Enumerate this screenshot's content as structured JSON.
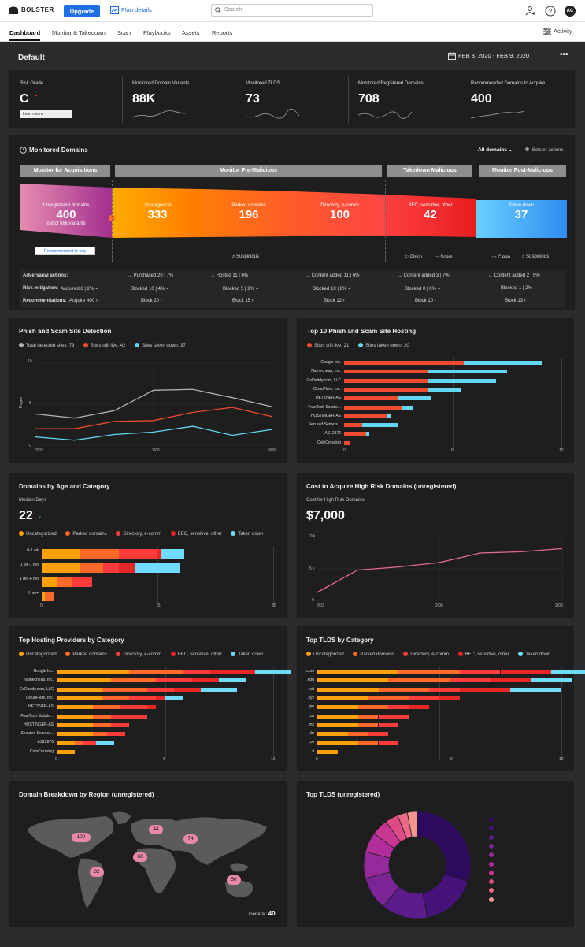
{
  "app": {
    "name": "BOLSTER",
    "upgrade": "Upgrade",
    "plan_details": "Plan details",
    "search_placeholder": "Search",
    "avatar": "AC",
    "activity": "Activity"
  },
  "nav": [
    "Dashboard",
    "Monitor & Takedown",
    "Scan",
    "Playbooks",
    "Assets",
    "Reports"
  ],
  "page": {
    "title": "Default",
    "date_range": "FEB 3, 2020 - FEB 9, 2020"
  },
  "stats": {
    "risk_grade_label": "Risk Grade",
    "risk_grade": "C",
    "learn_more": "Learn more",
    "items": [
      {
        "label": "Monitored Domain Variants",
        "value": "88K"
      },
      {
        "label": "Monitored TLDS",
        "value": "73"
      },
      {
        "label": "Monitored Registered Domains",
        "value": "708"
      },
      {
        "label": "Recommended Domains to Acquire",
        "value": "400"
      }
    ]
  },
  "monitored": {
    "title": "Monitored Domains",
    "filter": "All domains",
    "bolster_actions": "Bolster actions",
    "headers": [
      "Monitor for Acquisitions",
      "Monitor Pre-Malicious",
      "Takedown Malicious",
      "Monitor Post-Malicious"
    ],
    "segments": [
      {
        "label": "Unregistered domains",
        "value": "400",
        "sub": "out of 88k variants"
      },
      {
        "label": "Uncategorized",
        "value": "333"
      },
      {
        "label": "Parked domains",
        "value": "196"
      },
      {
        "label": "Directory, e-comm",
        "value": "100"
      },
      {
        "label": "BEC, sensitive, other",
        "value": "42"
      },
      {
        "label": "Taken down",
        "value": "37"
      }
    ],
    "recommended_btn": "Recommended to buy",
    "tags": {
      "suspicious": "Suspicious",
      "phish": "Phish",
      "scam": "Scam",
      "clean": "Clean",
      "suspicious2": "Suspicious"
    },
    "rows": {
      "adversarial": "Adversarial actions:",
      "risk": "Risk mitigation:",
      "recs": "Recommendations:",
      "adv": [
        "→ Purchased 20 | 7%",
        "→ Hosted 11 | 6%",
        "→ Content added 11 | 6%",
        "→ Content added 3 | 7%",
        "← Content added 2 | 5%"
      ],
      "risk_vals": [
        "Acquired 8 | 2% ⌁",
        "Blocked 10 | 4% ⌁",
        "Blocked 5 | 2% ⌁",
        "Blocked 10 | 8% ⌁",
        "Blocked 0 | 0% ⌁",
        "Blocked 1 | 2%"
      ],
      "rec_vals": [
        "Acquire 400 ›",
        "Block 20 ›",
        "Block 15 ›",
        "Block 12 ›",
        "Block 10 ›",
        "Block 13 ›"
      ]
    }
  },
  "phish_chart": {
    "title": "Phish and Scam Site Detection",
    "legend": [
      "Total detected sites: 79",
      "Sites still live: 42",
      "Sites taken down: 37"
    ],
    "ylabel": "Pages",
    "yticks": [
      "10",
      "5",
      "0"
    ],
    "xticks": [
      "2/03",
      "2/06",
      "2/09"
    ]
  },
  "hosting_chart": {
    "title": "Top 10 Phish and Scam Site Hosting",
    "legend": [
      "Sites still live: 21",
      "Sites taken down: 20"
    ],
    "xticks": [
      "0",
      "6",
      "12"
    ]
  },
  "age_chart": {
    "title": "Domains by Age and Category",
    "sub": "Median Days",
    "value": "22",
    "legend": [
      "Uncategorized",
      "Parked domains",
      "Directory, e-comm",
      "BEC, sensitive, other",
      "Taken down"
    ],
    "xticks": [
      "0",
      "15",
      "30"
    ]
  },
  "cost_chart": {
    "title": "Cost to Acquire High Risk Domains (unregistered)",
    "sub": "Cost for High Risk Domains",
    "value": "$7,000",
    "yticks": [
      "10 k",
      "5 k",
      "0"
    ],
    "xticks": [
      "2/03",
      "2/06",
      "2/09"
    ]
  },
  "providers_chart": {
    "title": "Top Hosting Providers by Category",
    "legend": [
      "Uncategorized",
      "Parked domains",
      "Directory, e-comm",
      "BEC, sensitive, other",
      "Taken down"
    ],
    "xticks": [
      "0",
      "6",
      "12"
    ]
  },
  "tlds_chart": {
    "title": "Top TLDS by Category",
    "legend": [
      "Uncategorized",
      "Parked domains",
      "Directory, e-comm",
      "BEC, sensitive, other",
      "Taken down"
    ],
    "xticks": [
      "0",
      "6",
      "12"
    ]
  },
  "region_map": {
    "title": "Domain Breakdown by Region (unregistered)",
    "bubbles": [
      "100",
      "44",
      "74",
      "60",
      "32",
      "50"
    ],
    "general_label": "General:",
    "general_value": "40"
  },
  "tlds_unreg": {
    "title": "Top TLDS (unregistered)"
  },
  "colors": {
    "uncat": "#ff9f0a",
    "parked": "#ff6a2a",
    "directory": "#ff3b3b",
    "bec": "#e82626",
    "taken": "#6fdcff",
    "total": "#b0b0b0",
    "live": "#ef4b2e",
    "down": "#62d7f5",
    "cost": "#e36a9e"
  },
  "chart_data": [
    {
      "type": "line",
      "title": "Phish and Scam Site Detection",
      "x": [
        "2/03",
        "2/04",
        "2/05",
        "2/06",
        "2/07",
        "2/08",
        "2/09"
      ],
      "ylim": [
        0,
        10
      ],
      "series": [
        {
          "name": "Total detected sites: 79",
          "values": [
            3.8,
            3.3,
            4.2,
            6.7,
            6.8,
            5.8,
            4.7
          ]
        },
        {
          "name": "Sites still live: 42",
          "values": [
            2.0,
            2.0,
            2.9,
            3.0,
            4.0,
            4.6,
            3.5
          ]
        },
        {
          "name": "Sites taken down: 37",
          "values": [
            1.0,
            0.6,
            1.3,
            1.6,
            2.3,
            1.2,
            1.9
          ]
        }
      ]
    },
    {
      "type": "bar",
      "title": "Top 10 Phish and Scam Site Hosting",
      "categories": [
        "Google Inc.",
        "Namecheap, Inc.",
        "GoDaddy.com, LLC",
        "CloudFlare, Inc.",
        "HETZNER-AS",
        "FranTech Solutio...",
        "HOSTINGER-AS",
        "Secured Servers...",
        "AS12876",
        "ColoCrossing"
      ],
      "xlim": [
        0,
        12
      ],
      "series": [
        {
          "name": "Sites still live: 21",
          "values": [
            6.6,
            4.6,
            4.6,
            4.6,
            3.0,
            3.2,
            2.4,
            1.0,
            1.2,
            0.3
          ]
        },
        {
          "name": "Sites taken down: 20",
          "values": [
            4.3,
            4.4,
            3.8,
            1.9,
            1.8,
            0.6,
            0.2,
            2.0,
            0.2,
            0
          ]
        }
      ]
    },
    {
      "type": "bar",
      "title": "Domains by Age and Category",
      "categories": [
        "0-1 wk",
        "1 wk-1 mo",
        "1 mo-6 mo",
        "6 mo+"
      ],
      "xlim": [
        0,
        30
      ],
      "series": [
        {
          "name": "Uncategorized",
          "values": [
            5.0,
            5.0,
            2.0,
            0.4
          ]
        },
        {
          "name": "Parked domains",
          "values": [
            5.0,
            3.0,
            2.0,
            1.1
          ]
        },
        {
          "name": "Directory, e-comm",
          "values": [
            5.0,
            2.0,
            2.5,
            0
          ]
        },
        {
          "name": "BEC, sensitive, other",
          "values": [
            0.5,
            2.0,
            0,
            0
          ]
        },
        {
          "name": "Taken down",
          "values": [
            3.0,
            6.0,
            0,
            0
          ]
        }
      ]
    },
    {
      "type": "line",
      "title": "Cost to Acquire High Risk Domains (unregistered)",
      "x": [
        "2/03",
        "2/04",
        "2/05",
        "2/06",
        "2/07",
        "2/08",
        "2/09"
      ],
      "ylim": [
        0,
        10000
      ],
      "series": [
        {
          "name": "Cost for High Risk Domains",
          "values": [
            1200,
            4800,
            5300,
            6000,
            7500,
            7700,
            8200
          ]
        }
      ]
    },
    {
      "type": "bar",
      "title": "Top Hosting Providers by Category",
      "categories": [
        "Google Inc.",
        "Namecheap, Inc.",
        "GoDaddy.com, LLC",
        "CloudFlare, Inc.",
        "HETZNER-AS",
        "FranTech Solutio...",
        "HOSTINGER-AS",
        "Secured Servers...",
        "AS12876",
        "ColoCrossing"
      ],
      "xlim": [
        0,
        12
      ],
      "series": [
        {
          "name": "Uncategorized",
          "values": [
            4.0,
            3.0,
            2.5,
            2.5,
            2.0,
            2.0,
            2.0,
            2.0,
            1.0,
            1.0
          ]
        },
        {
          "name": "Parked domains",
          "values": [
            3.0,
            2.5,
            2.5,
            1.5,
            1.5,
            1.0,
            1.0,
            0.8,
            0.4,
            0
          ]
        },
        {
          "name": "Directory, e-comm",
          "values": [
            1.5,
            2.0,
            1.5,
            1.5,
            1.5,
            2.0,
            1.0,
            1.0,
            0.8,
            0
          ]
        },
        {
          "name": "BEC, sensitive, other",
          "values": [
            2.5,
            1.5,
            1.5,
            0.5,
            0.5,
            0,
            0,
            0,
            0,
            0
          ]
        },
        {
          "name": "Taken down",
          "values": [
            2.0,
            1.5,
            2.0,
            1.0,
            0,
            0,
            0,
            0,
            1.0,
            0
          ]
        }
      ]
    },
    {
      "type": "bar",
      "title": "Top TLDS by Category",
      "categories": [
        ".com",
        ".edu",
        ".net",
        ".xyz",
        ".jpn",
        ".cn",
        ".mx",
        ".br",
        ".co",
        ".it"
      ],
      "xlim": [
        0,
        12
      ],
      "series": [
        {
          "name": "Uncategorized",
          "values": [
            4.0,
            3.5,
            3.0,
            2.5,
            2.0,
            2.0,
            2.0,
            1.5,
            2.0,
            1.0
          ]
        },
        {
          "name": "Parked domains",
          "values": [
            3.0,
            3.0,
            2.5,
            2.0,
            1.5,
            1.0,
            1.0,
            1.0,
            1.0,
            0
          ]
        },
        {
          "name": "Directory, e-comm",
          "values": [
            2.0,
            2.0,
            1.5,
            1.5,
            1.0,
            1.5,
            1.0,
            1.0,
            1.0,
            0
          ]
        },
        {
          "name": "BEC, sensitive, other",
          "values": [
            2.5,
            2.0,
            2.5,
            1.0,
            1.0,
            0,
            0,
            0,
            0,
            0
          ]
        },
        {
          "name": "Taken down",
          "values": [
            2.0,
            2.0,
            2.5,
            0,
            0,
            0,
            0,
            0,
            0,
            0
          ]
        }
      ]
    },
    {
      "type": "pie",
      "title": "Top TLDS (unregistered)",
      "values": [
        30,
        17,
        14,
        10,
        8,
        6,
        5,
        4,
        3,
        3
      ],
      "colors": [
        "#2e0a5e",
        "#45137a",
        "#5c1c8c",
        "#7a2496",
        "#962a9c",
        "#b02d9a",
        "#c93691",
        "#dd4a86",
        "#ec6a87",
        "#f59590"
      ]
    }
  ]
}
